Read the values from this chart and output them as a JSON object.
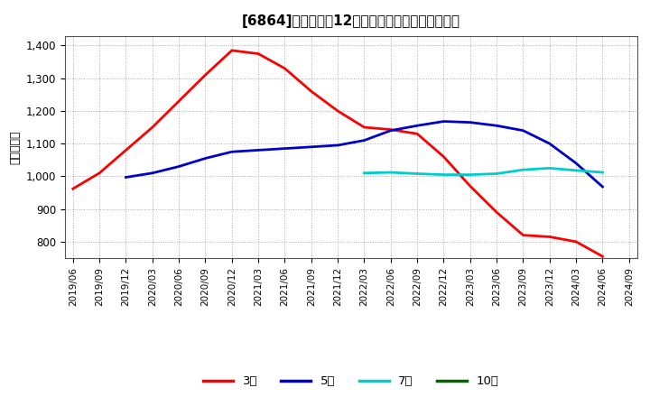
{
  "title": "[6864]　経常利益12か月移動合計の平均値の推移",
  "ylabel": "（百万円）",
  "background_color": "#ffffff",
  "plot_bg_color": "#ffffff",
  "ylim": [
    750,
    1430
  ],
  "yticks": [
    800,
    900,
    1000,
    1100,
    1200,
    1300,
    1400
  ],
  "series": {
    "3year": {
      "label": "3年",
      "color": "#ff0000",
      "dates": [
        "2019/06",
        "2019/09",
        "2019/12",
        "2020/03",
        "2020/06",
        "2020/09",
        "2020/12",
        "2021/03",
        "2021/06",
        "2021/09",
        "2021/12",
        "2022/03",
        "2022/06",
        "2022/09",
        "2022/12",
        "2023/03",
        "2023/06",
        "2023/09",
        "2023/12",
        "2024/03",
        "2024/06"
      ],
      "values": [
        962,
        1010,
        1080,
        1150,
        1230,
        1310,
        1385,
        1375,
        1330,
        1260,
        1200,
        1150,
        1143,
        1130,
        1060,
        970,
        890,
        820,
        815,
        800,
        755
      ]
    },
    "5year": {
      "label": "5年",
      "color": "#0000cc",
      "dates": [
        "2019/12",
        "2020/03",
        "2020/06",
        "2020/09",
        "2020/12",
        "2021/03",
        "2021/06",
        "2021/09",
        "2021/12",
        "2022/03",
        "2022/06",
        "2022/09",
        "2022/12",
        "2023/03",
        "2023/06",
        "2023/09",
        "2023/12",
        "2024/03",
        "2024/06"
      ],
      "values": [
        997,
        1010,
        1030,
        1055,
        1075,
        1080,
        1085,
        1090,
        1095,
        1110,
        1140,
        1155,
        1168,
        1165,
        1155,
        1140,
        1100,
        1040,
        968
      ]
    },
    "7year": {
      "label": "7年",
      "color": "#00cccc",
      "dates": [
        "2022/03",
        "2022/06",
        "2022/09",
        "2022/12",
        "2023/03",
        "2023/06",
        "2023/09",
        "2023/12",
        "2024/03",
        "2024/06"
      ],
      "values": [
        1010,
        1012,
        1008,
        1005,
        1005,
        1008,
        1020,
        1025,
        1018,
        1012
      ]
    },
    "10year": {
      "label": "10年",
      "color": "#006600",
      "dates": [],
      "values": []
    }
  },
  "xticks": [
    "2019/06",
    "2019/09",
    "2019/12",
    "2020/03",
    "2020/06",
    "2020/09",
    "2020/12",
    "2021/03",
    "2021/06",
    "2021/09",
    "2021/12",
    "2022/03",
    "2022/06",
    "2022/09",
    "2022/12",
    "2023/03",
    "2023/06",
    "2023/09",
    "2023/12",
    "2024/03",
    "2024/06",
    "2024/09"
  ],
  "legend_entries": [
    "3年",
    "5年",
    "7年",
    "10年"
  ],
  "legend_colors": [
    "#ff0000",
    "#0000cc",
    "#00cccc",
    "#006600"
  ]
}
